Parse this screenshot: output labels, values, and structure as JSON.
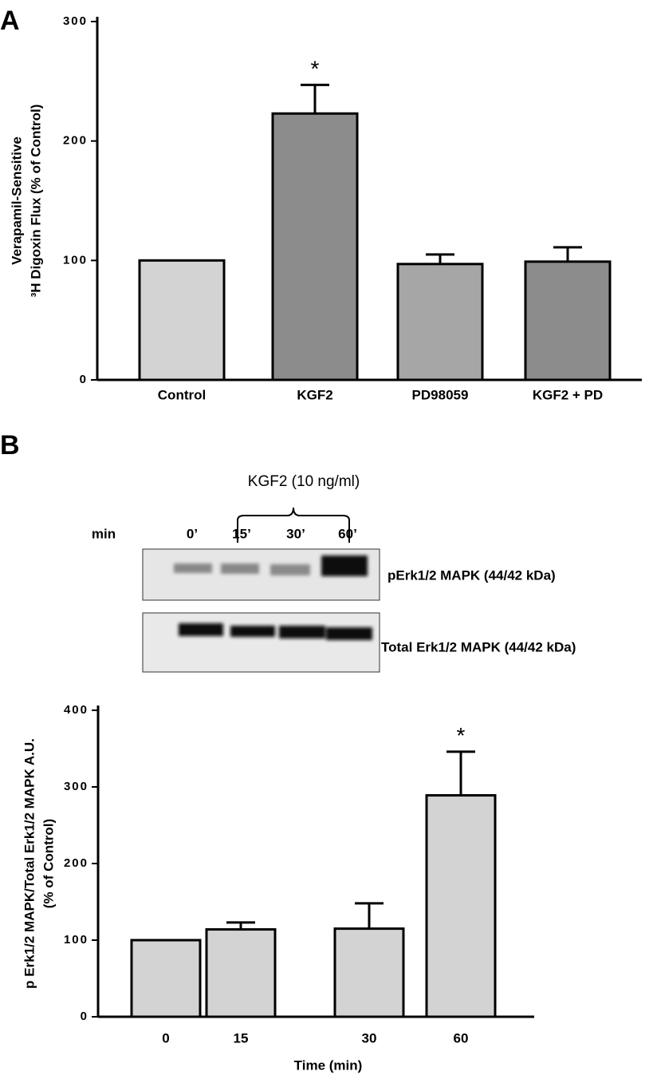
{
  "chart_data": [
    {
      "type": "bar",
      "panel": "A",
      "ylabel": [
        "Verapamil-Sensitive",
        "³H Digoxin Flux (% of Control)"
      ],
      "categories": [
        "Control",
        "KGF2",
        "PD98059",
        "KGF2 + PD"
      ],
      "values": [
        100,
        223,
        97,
        99
      ],
      "errors": [
        0,
        24,
        8,
        12
      ],
      "colors": [
        "#d3d3d3",
        "#8c8c8c",
        "#a6a6a6",
        "#8c8c8c"
      ],
      "ylim": [
        0,
        300
      ],
      "yticks": [
        0,
        100,
        200,
        300
      ],
      "annotations": [
        {
          "text": "*",
          "category": "KGF2"
        }
      ]
    },
    {
      "type": "bar",
      "panel": "B",
      "ylabel": [
        "p Erk1/2 MAPK/Total Erk1/2 MAPK A.U.",
        "(% of Control)"
      ],
      "xlabel": "Time (min)",
      "categories": [
        "0",
        "15",
        "30",
        "60"
      ],
      "values": [
        100,
        114,
        115,
        289
      ],
      "errors": [
        0,
        9,
        33,
        57
      ],
      "colors": [
        "#d3d3d3",
        "#d3d3d3",
        "#d3d3d3",
        "#d3d3d3"
      ],
      "ylim": [
        0,
        400
      ],
      "yticks": [
        0,
        100,
        200,
        300,
        400
      ],
      "annotations": [
        {
          "text": "*",
          "category": "60"
        }
      ]
    }
  ],
  "blot": {
    "treatment": "KGF2 (10 ng/ml)",
    "time_label": "min",
    "lanes": [
      "0’",
      "15’",
      "30’",
      "60’"
    ],
    "rows": [
      "pErk1/2 MAPK (44/42 kDa)",
      "Total Erk1/2 MAPK (44/42 kDa)"
    ]
  }
}
